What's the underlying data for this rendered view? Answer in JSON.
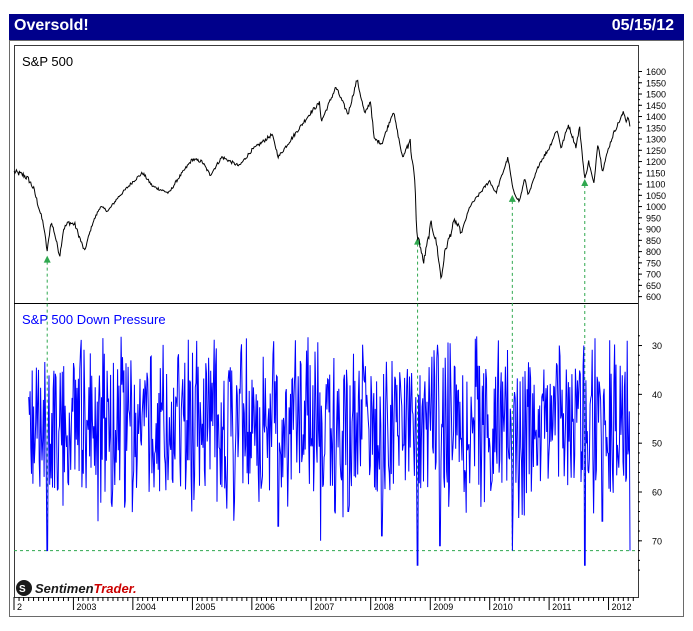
{
  "header": {
    "title": "Oversold!",
    "date": "05/15/12"
  },
  "brand": {
    "logo_text": "SentimenTrader",
    "logo_part1": "Sentimen",
    "logo_part2": "Trader."
  },
  "colors": {
    "header_bg": "#00008b",
    "price_line": "#000000",
    "pressure_line": "#0000ff",
    "signal_arrow": "#2fa84f",
    "threshold_line": "#2fa84f",
    "logo_red": "#cc0000"
  },
  "chart_data": [
    {
      "type": "line",
      "title": "S&P 500",
      "xlabel": "",
      "ylabel": "",
      "y_axis_side": "right",
      "ylim": [
        585,
        1660
      ],
      "y_ticks": [
        600,
        650,
        700,
        750,
        800,
        850,
        900,
        950,
        1000,
        1050,
        1100,
        1150,
        1200,
        1250,
        1300,
        1350,
        1400,
        1450,
        1500,
        1550,
        1600
      ],
      "x_ticks": [
        "2",
        "2003",
        "2004",
        "2005",
        "2006",
        "2007",
        "2008",
        "2009",
        "2010",
        "2011",
        "2012"
      ],
      "xlim": [
        "2002-01-01",
        "2012-06-30"
      ],
      "grid": false,
      "series": [
        {
          "name": "S&P 500",
          "points": [
            [
              "2002-01-02",
              1154
            ],
            [
              "2002-03-01",
              1140
            ],
            [
              "2002-04-01",
              1120
            ],
            [
              "2002-05-01",
              1080
            ],
            [
              "2002-06-01",
              1000
            ],
            [
              "2002-07-01",
              920
            ],
            [
              "2002-07-24",
              800
            ],
            [
              "2002-08-15",
              930
            ],
            [
              "2002-09-01",
              900
            ],
            [
              "2002-10-09",
              780
            ],
            [
              "2002-11-01",
              900
            ],
            [
              "2002-12-01",
              930
            ],
            [
              "2003-01-10",
              920
            ],
            [
              "2003-03-11",
              800
            ],
            [
              "2003-04-01",
              860
            ],
            [
              "2003-05-01",
              930
            ],
            [
              "2003-06-15",
              1000
            ],
            [
              "2003-08-01",
              980
            ],
            [
              "2003-10-01",
              1040
            ],
            [
              "2003-12-31",
              1110
            ],
            [
              "2004-03-01",
              1150
            ],
            [
              "2004-05-01",
              1090
            ],
            [
              "2004-08-10",
              1060
            ],
            [
              "2004-10-01",
              1120
            ],
            [
              "2004-12-31",
              1210
            ],
            [
              "2005-03-01",
              1200
            ],
            [
              "2005-04-20",
              1140
            ],
            [
              "2005-07-01",
              1220
            ],
            [
              "2005-10-15",
              1180
            ],
            [
              "2005-12-31",
              1250
            ],
            [
              "2006-05-05",
              1320
            ],
            [
              "2006-06-13",
              1220
            ],
            [
              "2006-08-01",
              1270
            ],
            [
              "2006-12-31",
              1420
            ],
            [
              "2007-02-20",
              1460
            ],
            [
              "2007-03-05",
              1380
            ],
            [
              "2007-06-01",
              1530
            ],
            [
              "2007-08-15",
              1410
            ],
            [
              "2007-10-09",
              1565
            ],
            [
              "2007-11-26",
              1410
            ],
            [
              "2007-12-31",
              1470
            ],
            [
              "2008-01-22",
              1300
            ],
            [
              "2008-03-10",
              1280
            ],
            [
              "2008-05-19",
              1425
            ],
            [
              "2008-07-15",
              1215
            ],
            [
              "2008-08-28",
              1300
            ],
            [
              "2008-09-29",
              1100
            ],
            [
              "2008-10-10",
              880
            ],
            [
              "2008-10-27",
              840
            ],
            [
              "2008-11-20",
              750
            ],
            [
              "2008-12-31",
              900
            ],
            [
              "2009-01-06",
              930
            ],
            [
              "2009-02-10",
              830
            ],
            [
              "2009-03-09",
              676
            ],
            [
              "2009-04-01",
              800
            ],
            [
              "2009-06-01",
              940
            ],
            [
              "2009-07-10",
              880
            ],
            [
              "2009-09-01",
              1000
            ],
            [
              "2009-12-31",
              1115
            ],
            [
              "2010-02-08",
              1060
            ],
            [
              "2010-04-23",
              1217
            ],
            [
              "2010-05-25",
              1070
            ],
            [
              "2010-07-02",
              1022
            ],
            [
              "2010-08-05",
              1125
            ],
            [
              "2010-08-27",
              1050
            ],
            [
              "2010-11-01",
              1190
            ],
            [
              "2010-12-31",
              1258
            ],
            [
              "2011-02-18",
              1343
            ],
            [
              "2011-03-16",
              1260
            ],
            [
              "2011-04-29",
              1364
            ],
            [
              "2011-06-15",
              1265
            ],
            [
              "2011-07-07",
              1353
            ],
            [
              "2011-08-08",
              1119
            ],
            [
              "2011-09-01",
              1200
            ],
            [
              "2011-10-03",
              1099
            ],
            [
              "2011-10-27",
              1285
            ],
            [
              "2011-11-25",
              1158
            ],
            [
              "2011-12-31",
              1257
            ],
            [
              "2012-02-01",
              1325
            ],
            [
              "2012-04-02",
              1419
            ],
            [
              "2012-04-20",
              1378
            ],
            [
              "2012-05-01",
              1405
            ],
            [
              "2012-05-15",
              1330
            ]
          ]
        }
      ]
    },
    {
      "type": "line",
      "title": "S&P 500 Down Pressure",
      "xlabel": "",
      "ylabel": "",
      "y_axis_side": "right",
      "y_inverted": true,
      "ylim": [
        77,
        26
      ],
      "y_ticks": [
        30,
        40,
        50,
        60,
        70
      ],
      "x_ticks": [
        "2",
        "2003",
        "2004",
        "2005",
        "2006",
        "2007",
        "2008",
        "2009",
        "2010",
        "2011",
        "2012"
      ],
      "xlim": [
        "2002-01-01",
        "2012-06-30"
      ],
      "grid": false,
      "threshold": 72,
      "series": [
        {
          "name": "S&P 500 Down Pressure",
          "min": 28,
          "max": 75,
          "typical_range": [
            34,
            60
          ],
          "spikes": [
            [
              "2002-07-24",
              72
            ],
            [
              "2003-06-01",
              66
            ],
            [
              "2006-06-13",
              67
            ],
            [
              "2007-02-27",
              70
            ],
            [
              "2007-08-15",
              64
            ],
            [
              "2008-03-10",
              69
            ],
            [
              "2008-10-15",
              75
            ],
            [
              "2009-03-02",
              71
            ],
            [
              "2010-05-20",
              72
            ],
            [
              "2011-08-08",
              75
            ],
            [
              "2011-11-25",
              66
            ],
            [
              "2012-05-15",
              72
            ]
          ]
        }
      ],
      "signals": [
        {
          "date": "2002-07-24",
          "sp500": 800,
          "pressure": 72
        },
        {
          "date": "2008-10-15",
          "sp500": 880,
          "pressure": 75
        },
        {
          "date": "2010-05-20",
          "sp500": 1070,
          "pressure": 72
        },
        {
          "date": "2011-08-08",
          "sp500": 1140,
          "pressure": 75
        }
      ]
    }
  ]
}
